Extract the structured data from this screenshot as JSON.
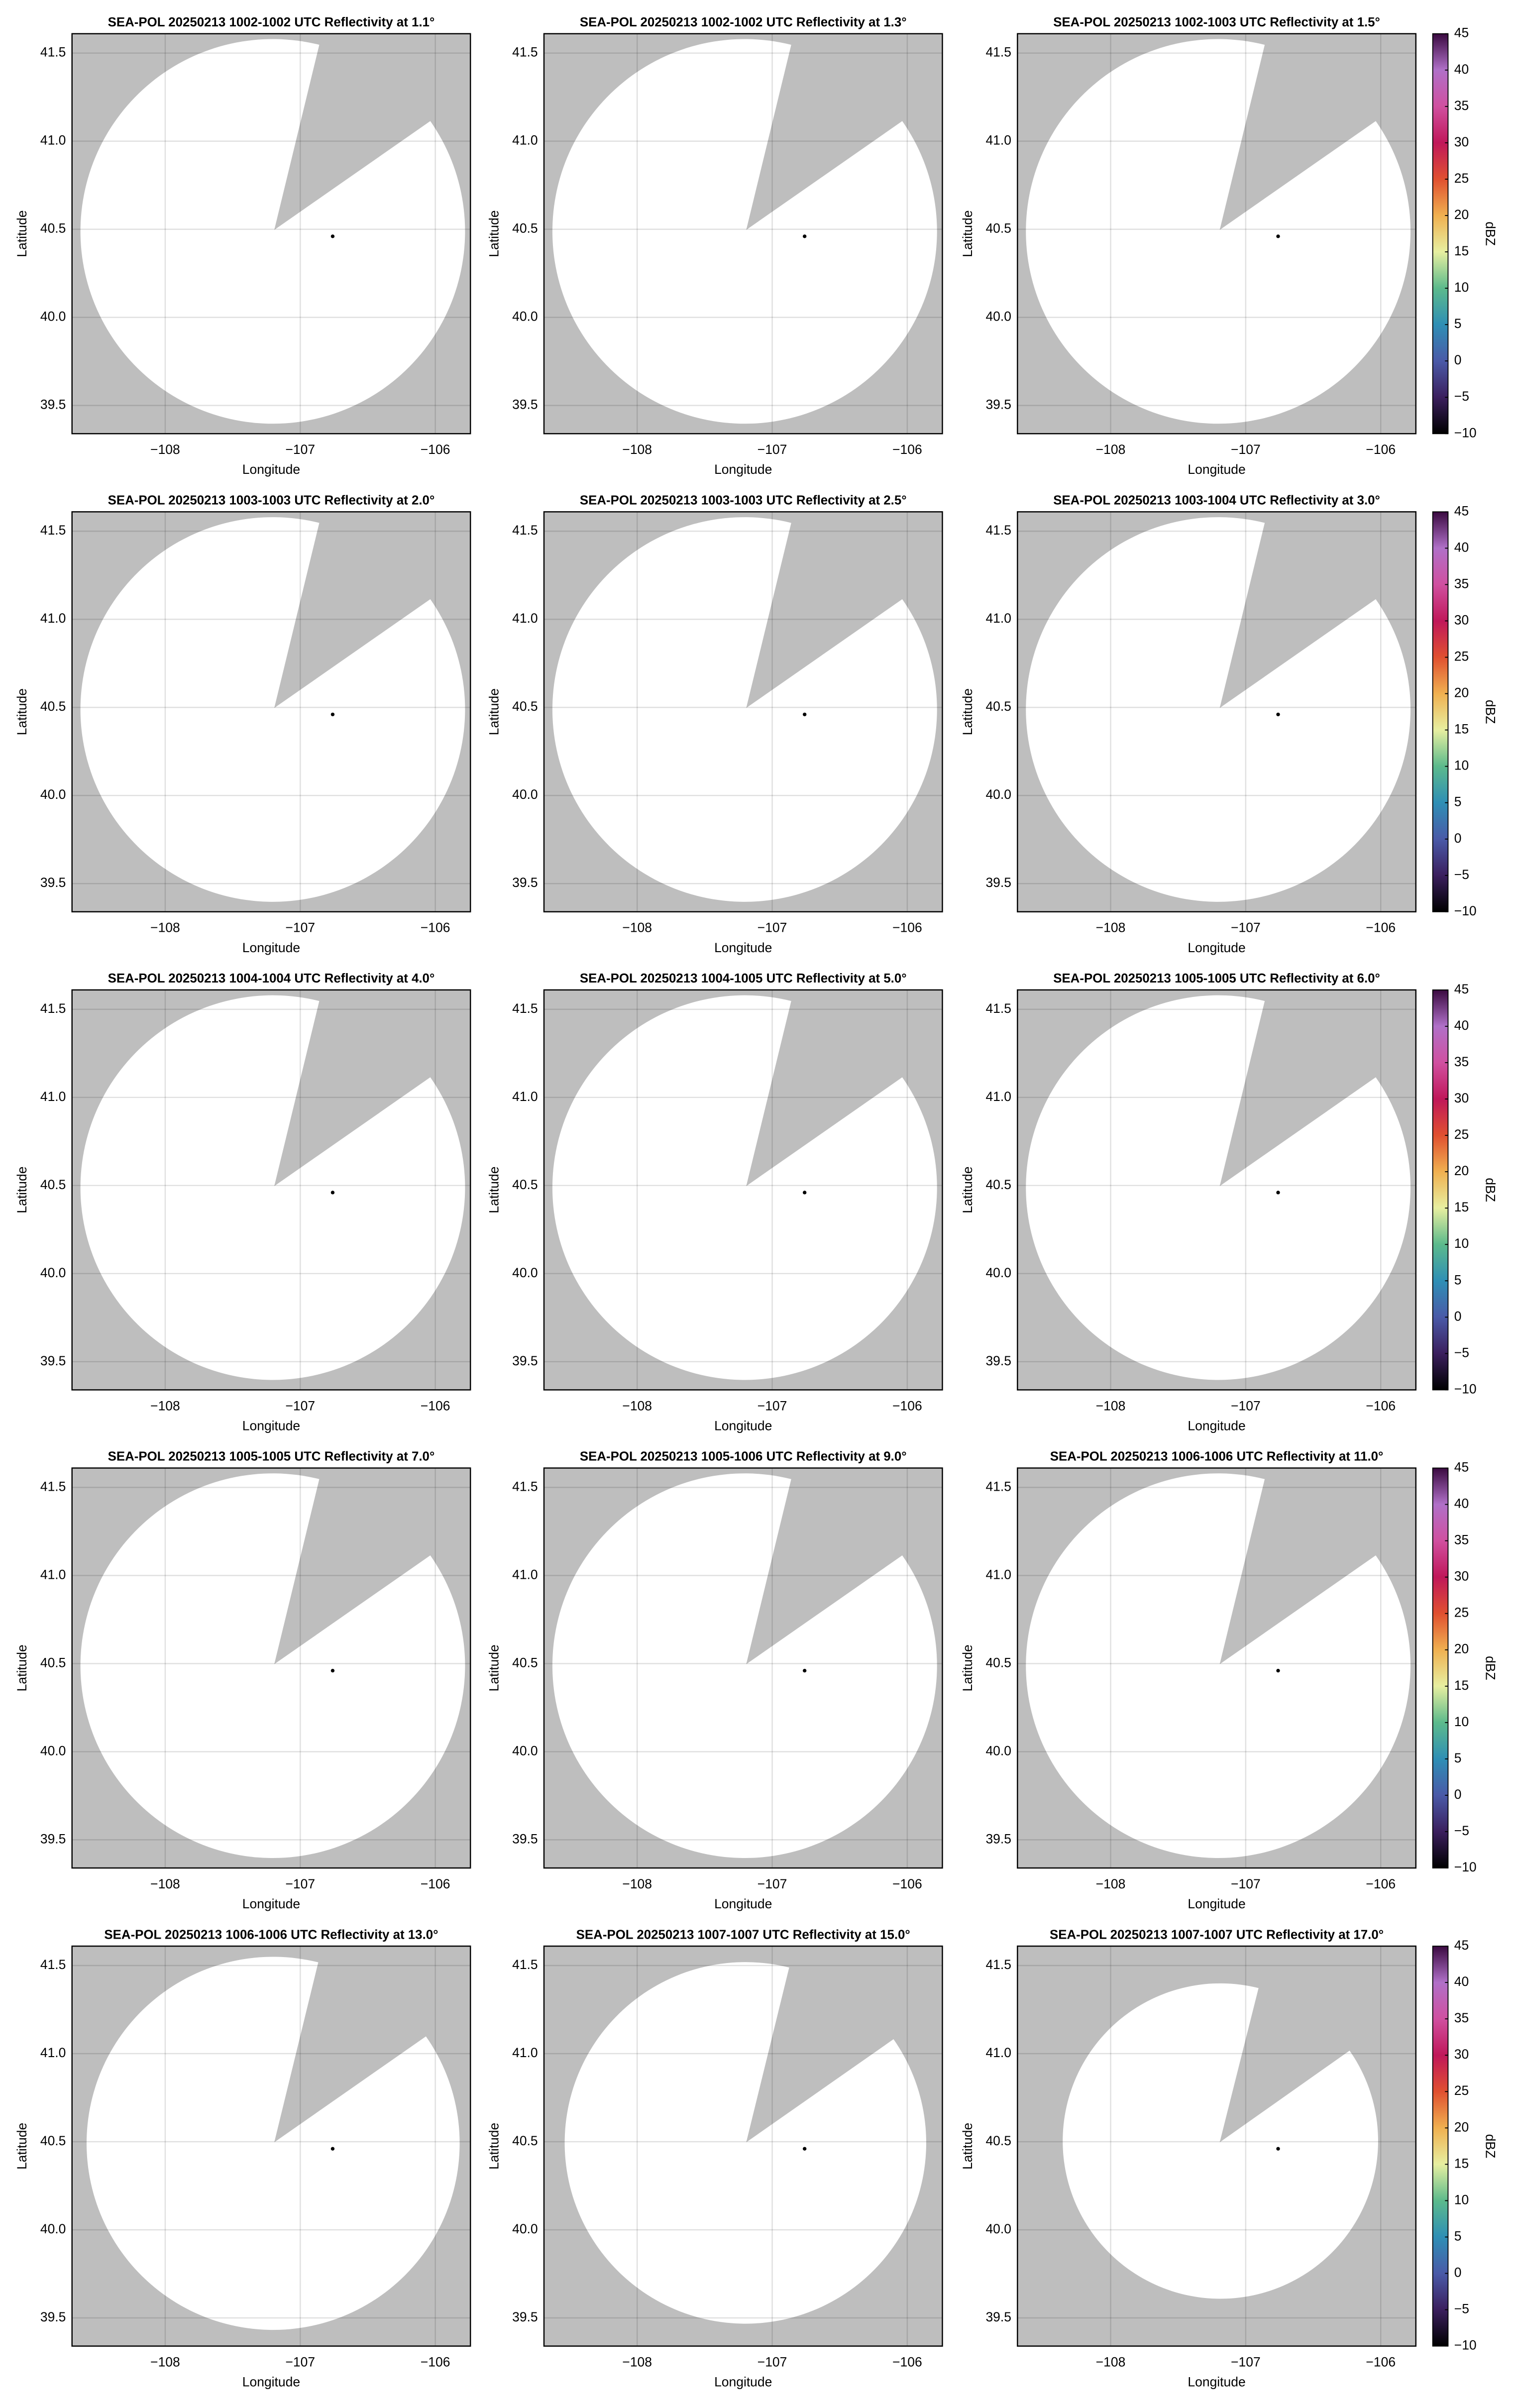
{
  "chart_data": [
    {
      "type": "ppi",
      "title": "SEA-POL 20250213 1002-1002 UTC Reflectivity at 1.1°",
      "xlabel": "Longitude",
      "ylabel": "Latitude",
      "xlim": [
        -108.69,
        -105.74
      ],
      "ylim": [
        39.34,
        41.61
      ],
      "xticks": [
        {
          "value": -108,
          "label": "−108"
        },
        {
          "value": -107,
          "label": "−107"
        },
        {
          "value": -106,
          "label": "−106"
        }
      ],
      "yticks": [
        39.5,
        {
          "value": 40,
          "label": "40.0"
        },
        40.5,
        {
          "value": 41,
          "label": "41.0"
        },
        41.5
      ],
      "grid": true,
      "background": "#bebebe",
      "x": [
        -106.76
      ],
      "y": [
        40.46
      ],
      "marker_color": "#000000"
    },
    {
      "type": "ppi",
      "title": "SEA-POL 20250213 1002-1002 UTC Reflectivity at 1.3°",
      "xlabel": "Longitude",
      "ylabel": "Latitude",
      "xlim": [
        -108.69,
        -105.74
      ],
      "ylim": [
        39.34,
        41.61
      ],
      "xticks": [
        {
          "value": -108,
          "label": "−108"
        },
        {
          "value": -107,
          "label": "−107"
        },
        {
          "value": -106,
          "label": "−106"
        }
      ],
      "yticks": [
        39.5,
        {
          "value": 40,
          "label": "40.0"
        },
        40.5,
        {
          "value": 41,
          "label": "41.0"
        },
        41.5
      ],
      "grid": true,
      "background": "#bebebe",
      "x": [
        -106.76
      ],
      "y": [
        40.46
      ],
      "marker_color": "#000000"
    },
    {
      "type": "ppi",
      "title": "SEA-POL 20250213 1002-1003 UTC Reflectivity at 1.5°",
      "xlabel": "Longitude",
      "ylabel": "Latitude",
      "xlim": [
        -108.69,
        -105.74
      ],
      "ylim": [
        39.34,
        41.61
      ],
      "xticks": [
        {
          "value": -108,
          "label": "−108"
        },
        {
          "value": -107,
          "label": "−107"
        },
        {
          "value": -106,
          "label": "−106"
        }
      ],
      "yticks": [
        39.5,
        {
          "value": 40,
          "label": "40.0"
        },
        40.5,
        {
          "value": 41,
          "label": "41.0"
        },
        41.5
      ],
      "grid": true,
      "background": "#bebebe",
      "x": [
        -106.76
      ],
      "y": [
        40.46
      ],
      "marker_color": "#000000",
      "colorbar": {
        "label": "dBZ",
        "lim": [
          -10,
          45
        ],
        "ticks": [
          {
            "value": -10,
            "label": "−10"
          },
          {
            "value": -5,
            "label": "−5"
          },
          0,
          5,
          10,
          15,
          20,
          25,
          30,
          35,
          40,
          45
        ],
        "colors": [
          "#000000",
          "#3b1f5e",
          "#4a5aa8",
          "#2f8fb5",
          "#5cba8c",
          "#e7efa0",
          "#f0b050",
          "#e05030",
          "#c0185a",
          "#d050a0",
          "#b070c8",
          "#3a0a40"
        ]
      }
    },
    {
      "type": "ppi",
      "title": "SEA-POL 20250213 1003-1003 UTC Reflectivity at 2.0°",
      "xlabel": "Longitude",
      "ylabel": "Latitude",
      "xlim": [
        -108.69,
        -105.74
      ],
      "ylim": [
        39.34,
        41.61
      ],
      "xticks": [
        {
          "value": -108,
          "label": "−108"
        },
        {
          "value": -107,
          "label": "−107"
        },
        {
          "value": -106,
          "label": "−106"
        }
      ],
      "yticks": [
        39.5,
        {
          "value": 40,
          "label": "40.0"
        },
        40.5,
        {
          "value": 41,
          "label": "41.0"
        },
        41.5
      ],
      "grid": true,
      "background": "#bebebe",
      "x": [
        -106.76
      ],
      "y": [
        40.46
      ],
      "marker_color": "#000000"
    },
    {
      "type": "ppi",
      "title": "SEA-POL 20250213 1003-1003 UTC Reflectivity at 2.5°",
      "xlabel": "Longitude",
      "ylabel": "Latitude",
      "xlim": [
        -108.69,
        -105.74
      ],
      "ylim": [
        39.34,
        41.61
      ],
      "xticks": [
        {
          "value": -108,
          "label": "−108"
        },
        {
          "value": -107,
          "label": "−107"
        },
        {
          "value": -106,
          "label": "−106"
        }
      ],
      "yticks": [
        39.5,
        {
          "value": 40,
          "label": "40.0"
        },
        40.5,
        {
          "value": 41,
          "label": "41.0"
        },
        41.5
      ],
      "grid": true,
      "background": "#bebebe",
      "x": [
        -106.76
      ],
      "y": [
        40.46
      ],
      "marker_color": "#000000"
    },
    {
      "type": "ppi",
      "title": "SEA-POL 20250213 1003-1004 UTC Reflectivity at 3.0°",
      "xlabel": "Longitude",
      "ylabel": "Latitude",
      "xlim": [
        -108.69,
        -105.74
      ],
      "ylim": [
        39.34,
        41.61
      ],
      "xticks": [
        {
          "value": -108,
          "label": "−108"
        },
        {
          "value": -107,
          "label": "−107"
        },
        {
          "value": -106,
          "label": "−106"
        }
      ],
      "yticks": [
        39.5,
        {
          "value": 40,
          "label": "40.0"
        },
        40.5,
        {
          "value": 41,
          "label": "41.0"
        },
        41.5
      ],
      "grid": true,
      "background": "#bebebe",
      "x": [
        -106.76
      ],
      "y": [
        40.46
      ],
      "marker_color": "#000000",
      "colorbar": {
        "label": "dBZ",
        "lim": [
          -10,
          45
        ],
        "ticks": [
          {
            "value": -10,
            "label": "−10"
          },
          {
            "value": -5,
            "label": "−5"
          },
          0,
          5,
          10,
          15,
          20,
          25,
          30,
          35,
          40,
          45
        ],
        "colors": [
          "#000000",
          "#3b1f5e",
          "#4a5aa8",
          "#2f8fb5",
          "#5cba8c",
          "#e7efa0",
          "#f0b050",
          "#e05030",
          "#c0185a",
          "#d050a0",
          "#b070c8",
          "#3a0a40"
        ]
      }
    },
    {
      "type": "ppi",
      "title": "SEA-POL 20250213 1004-1004 UTC Reflectivity at 4.0°",
      "xlabel": "Longitude",
      "ylabel": "Latitude",
      "xlim": [
        -108.69,
        -105.74
      ],
      "ylim": [
        39.34,
        41.61
      ],
      "xticks": [
        {
          "value": -108,
          "label": "−108"
        },
        {
          "value": -107,
          "label": "−107"
        },
        {
          "value": -106,
          "label": "−106"
        }
      ],
      "yticks": [
        39.5,
        {
          "value": 40,
          "label": "40.0"
        },
        40.5,
        {
          "value": 41,
          "label": "41.0"
        },
        41.5
      ],
      "grid": true,
      "background": "#bebebe",
      "x": [
        -106.76
      ],
      "y": [
        40.46
      ],
      "marker_color": "#000000"
    },
    {
      "type": "ppi",
      "title": "SEA-POL 20250213 1004-1005 UTC Reflectivity at 5.0°",
      "xlabel": "Longitude",
      "ylabel": "Latitude",
      "xlim": [
        -108.69,
        -105.74
      ],
      "ylim": [
        39.34,
        41.61
      ],
      "xticks": [
        {
          "value": -108,
          "label": "−108"
        },
        {
          "value": -107,
          "label": "−107"
        },
        {
          "value": -106,
          "label": "−106"
        }
      ],
      "yticks": [
        39.5,
        {
          "value": 40,
          "label": "40.0"
        },
        40.5,
        {
          "value": 41,
          "label": "41.0"
        },
        41.5
      ],
      "grid": true,
      "background": "#bebebe",
      "x": [
        -106.76
      ],
      "y": [
        40.46
      ],
      "marker_color": "#000000"
    },
    {
      "type": "ppi",
      "title": "SEA-POL 20250213 1005-1005 UTC Reflectivity at 6.0°",
      "xlabel": "Longitude",
      "ylabel": "Latitude",
      "xlim": [
        -108.69,
        -105.74
      ],
      "ylim": [
        39.34,
        41.61
      ],
      "xticks": [
        {
          "value": -108,
          "label": "−108"
        },
        {
          "value": -107,
          "label": "−107"
        },
        {
          "value": -106,
          "label": "−106"
        }
      ],
      "yticks": [
        39.5,
        {
          "value": 40,
          "label": "40.0"
        },
        40.5,
        {
          "value": 41,
          "label": "41.0"
        },
        41.5
      ],
      "grid": true,
      "background": "#bebebe",
      "x": [
        -106.76
      ],
      "y": [
        40.46
      ],
      "marker_color": "#000000",
      "colorbar": {
        "label": "dBZ",
        "lim": [
          -10,
          45
        ],
        "ticks": [
          {
            "value": -10,
            "label": "−10"
          },
          {
            "value": -5,
            "label": "−5"
          },
          0,
          5,
          10,
          15,
          20,
          25,
          30,
          35,
          40,
          45
        ],
        "colors": [
          "#000000",
          "#3b1f5e",
          "#4a5aa8",
          "#2f8fb5",
          "#5cba8c",
          "#e7efa0",
          "#f0b050",
          "#e05030",
          "#c0185a",
          "#d050a0",
          "#b070c8",
          "#3a0a40"
        ]
      }
    },
    {
      "type": "ppi",
      "title": "SEA-POL 20250213 1005-1005 UTC Reflectivity at 7.0°",
      "xlabel": "Longitude",
      "ylabel": "Latitude",
      "xlim": [
        -108.69,
        -105.74
      ],
      "ylim": [
        39.34,
        41.61
      ],
      "xticks": [
        {
          "value": -108,
          "label": "−108"
        },
        {
          "value": -107,
          "label": "−107"
        },
        {
          "value": -106,
          "label": "−106"
        }
      ],
      "yticks": [
        39.5,
        {
          "value": 40,
          "label": "40.0"
        },
        40.5,
        {
          "value": 41,
          "label": "41.0"
        },
        41.5
      ],
      "grid": true,
      "background": "#bebebe",
      "x": [
        -106.76
      ],
      "y": [
        40.46
      ],
      "marker_color": "#000000"
    },
    {
      "type": "ppi",
      "title": "SEA-POL 20250213 1005-1006 UTC Reflectivity at 9.0°",
      "xlabel": "Longitude",
      "ylabel": "Latitude",
      "xlim": [
        -108.69,
        -105.74
      ],
      "ylim": [
        39.34,
        41.61
      ],
      "xticks": [
        {
          "value": -108,
          "label": "−108"
        },
        {
          "value": -107,
          "label": "−107"
        },
        {
          "value": -106,
          "label": "−106"
        }
      ],
      "yticks": [
        39.5,
        {
          "value": 40,
          "label": "40.0"
        },
        40.5,
        {
          "value": 41,
          "label": "41.0"
        },
        41.5
      ],
      "grid": true,
      "background": "#bebebe",
      "x": [
        -106.76
      ],
      "y": [
        40.46
      ],
      "marker_color": "#000000"
    },
    {
      "type": "ppi",
      "title": "SEA-POL 20250213 1006-1006 UTC Reflectivity at 11.0°",
      "xlabel": "Longitude",
      "ylabel": "Latitude",
      "xlim": [
        -108.69,
        -105.74
      ],
      "ylim": [
        39.34,
        41.61
      ],
      "xticks": [
        {
          "value": -108,
          "label": "−108"
        },
        {
          "value": -107,
          "label": "−107"
        },
        {
          "value": -106,
          "label": "−106"
        }
      ],
      "yticks": [
        39.5,
        {
          "value": 40,
          "label": "40.0"
        },
        40.5,
        {
          "value": 41,
          "label": "41.0"
        },
        41.5
      ],
      "grid": true,
      "background": "#bebebe",
      "x": [
        -106.76
      ],
      "y": [
        40.46
      ],
      "marker_color": "#000000",
      "colorbar": {
        "label": "dBZ",
        "lim": [
          -10,
          45
        ],
        "ticks": [
          {
            "value": -10,
            "label": "−10"
          },
          {
            "value": -5,
            "label": "−5"
          },
          0,
          5,
          10,
          15,
          20,
          25,
          30,
          35,
          40,
          45
        ],
        "colors": [
          "#000000",
          "#3b1f5e",
          "#4a5aa8",
          "#2f8fb5",
          "#5cba8c",
          "#e7efa0",
          "#f0b050",
          "#e05030",
          "#c0185a",
          "#d050a0",
          "#b070c8",
          "#3a0a40"
        ]
      }
    },
    {
      "type": "ppi",
      "title": "SEA-POL 20250213 1006-1006 UTC Reflectivity at 13.0°",
      "xlabel": "Longitude",
      "ylabel": "Latitude",
      "xlim": [
        -108.69,
        -105.74
      ],
      "ylim": [
        39.34,
        41.61
      ],
      "xticks": [
        {
          "value": -108,
          "label": "−108"
        },
        {
          "value": -107,
          "label": "−107"
        },
        {
          "value": -106,
          "label": "−106"
        }
      ],
      "yticks": [
        39.5,
        {
          "value": 40,
          "label": "40.0"
        },
        40.5,
        {
          "value": 41,
          "label": "41.0"
        },
        41.5
      ],
      "grid": true,
      "background": "#bebebe",
      "x": [
        -106.76
      ],
      "y": [
        40.46
      ],
      "marker_color": "#000000"
    },
    {
      "type": "ppi",
      "title": "SEA-POL 20250213 1007-1007 UTC Reflectivity at 15.0°",
      "xlabel": "Longitude",
      "ylabel": "Latitude",
      "xlim": [
        -108.69,
        -105.74
      ],
      "ylim": [
        39.34,
        41.61
      ],
      "xticks": [
        {
          "value": -108,
          "label": "−108"
        },
        {
          "value": -107,
          "label": "−107"
        },
        {
          "value": -106,
          "label": "−106"
        }
      ],
      "yticks": [
        39.5,
        {
          "value": 40,
          "label": "40.0"
        },
        40.5,
        {
          "value": 41,
          "label": "41.0"
        },
        41.5
      ],
      "grid": true,
      "background": "#bebebe",
      "x": [
        -106.76
      ],
      "y": [
        40.46
      ],
      "marker_color": "#000000"
    },
    {
      "type": "ppi",
      "title": "SEA-POL 20250213 1007-1007 UTC Reflectivity at 17.0°",
      "xlabel": "Longitude",
      "ylabel": "Latitude",
      "xlim": [
        -108.69,
        -105.74
      ],
      "ylim": [
        39.34,
        41.61
      ],
      "xticks": [
        {
          "value": -108,
          "label": "−108"
        },
        {
          "value": -107,
          "label": "−107"
        },
        {
          "value": -106,
          "label": "−106"
        }
      ],
      "yticks": [
        39.5,
        {
          "value": 40,
          "label": "40.0"
        },
        40.5,
        {
          "value": 41,
          "label": "41.0"
        },
        41.5
      ],
      "grid": true,
      "background": "#bebebe",
      "x": [
        -106.76
      ],
      "y": [
        40.46
      ],
      "marker_color": "#000000",
      "colorbar": {
        "label": "dBZ",
        "lim": [
          -10,
          45
        ],
        "ticks": [
          {
            "value": -10,
            "label": "−10"
          },
          {
            "value": -5,
            "label": "−5"
          },
          0,
          5,
          10,
          15,
          20,
          25,
          30,
          35,
          40,
          45
        ],
        "colors": [
          "#000000",
          "#3b1f5e",
          "#4a5aa8",
          "#2f8fb5",
          "#5cba8c",
          "#e7efa0",
          "#f0b050",
          "#e05030",
          "#c0185a",
          "#d050a0",
          "#b070c8",
          "#3a0a40"
        ]
      }
    }
  ]
}
